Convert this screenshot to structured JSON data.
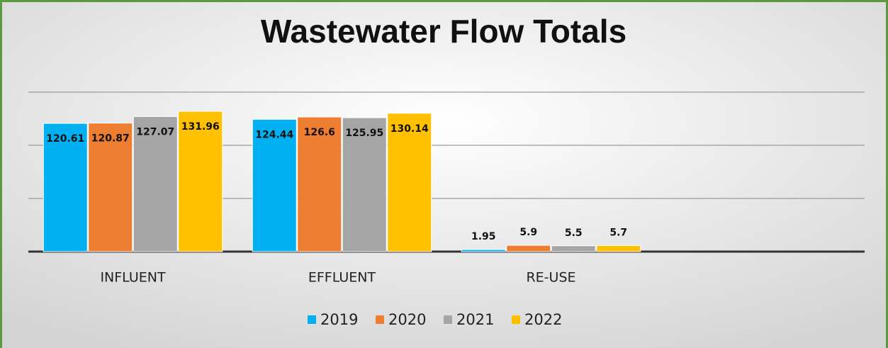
{
  "chart_data": {
    "type": "bar",
    "title": "Wastewater Flow Totals",
    "categories": [
      "INFLUENT",
      "EFFLUENT",
      "RE-USE",
      null
    ],
    "series": [
      {
        "name": "2019",
        "color": "#00b0f0",
        "values": [
          120.61,
          124.44,
          1.95,
          null
        ]
      },
      {
        "name": "2020",
        "color": "#ed7d31",
        "values": [
          120.87,
          126.6,
          5.9,
          null
        ]
      },
      {
        "name": "2021",
        "color": "#a5a5a5",
        "values": [
          127.07,
          125.95,
          5.5,
          null
        ]
      },
      {
        "name": "2022",
        "color": "#ffc000",
        "values": [
          131.96,
          130.14,
          5.7,
          null
        ]
      }
    ],
    "ylim": [
      0,
      150
    ],
    "yticks": [
      0,
      50,
      100,
      150
    ],
    "grid": true,
    "legend": "bottom"
  }
}
